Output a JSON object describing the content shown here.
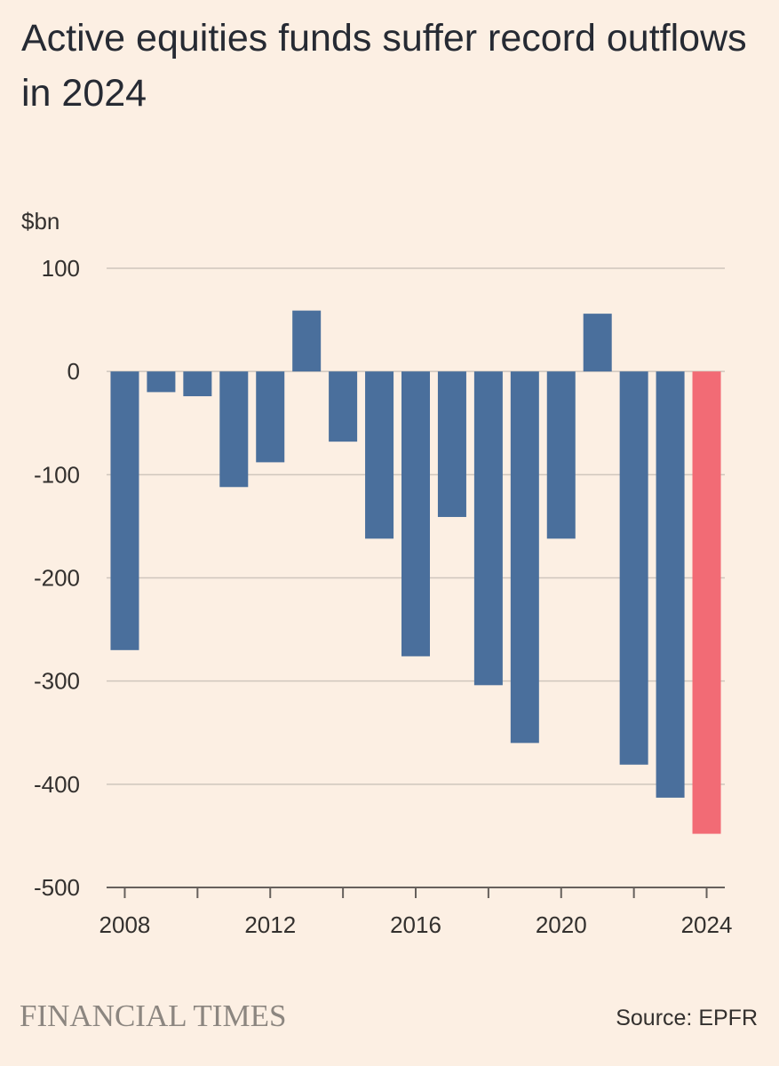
{
  "header": {
    "title": "Active equities funds suffer record outflows in 2024"
  },
  "footer": {
    "brand": "FINANCIAL TIMES",
    "source": "Source: EPFR"
  },
  "colors": {
    "background": "#fcefe3",
    "bar": "#4a6f9c",
    "highlight": "#f26b75",
    "grid": "#cfc6bd",
    "text": "#33302e"
  },
  "chart_data": {
    "type": "bar",
    "title": "Active equities funds suffer record outflows in 2024",
    "ylabel": "$bn",
    "xlabel": "",
    "ylim": [
      -500,
      100
    ],
    "yticks": [
      100,
      0,
      -100,
      -200,
      -300,
      -400,
      -500
    ],
    "xtick_labels": [
      "2008",
      "2012",
      "2016",
      "2020",
      "2024"
    ],
    "categories": [
      "2008",
      "2009",
      "2010",
      "2011",
      "2012",
      "2013",
      "2014",
      "2015",
      "2016",
      "2017",
      "2018",
      "2019",
      "2020",
      "2021",
      "2022",
      "2023",
      "2024"
    ],
    "values": [
      -270,
      -20,
      -24,
      -112,
      -88,
      59,
      -68,
      -162,
      -276,
      -141,
      -304,
      -360,
      -162,
      56,
      -381,
      -413,
      -448
    ],
    "highlight_category": "2024",
    "grid": true
  }
}
